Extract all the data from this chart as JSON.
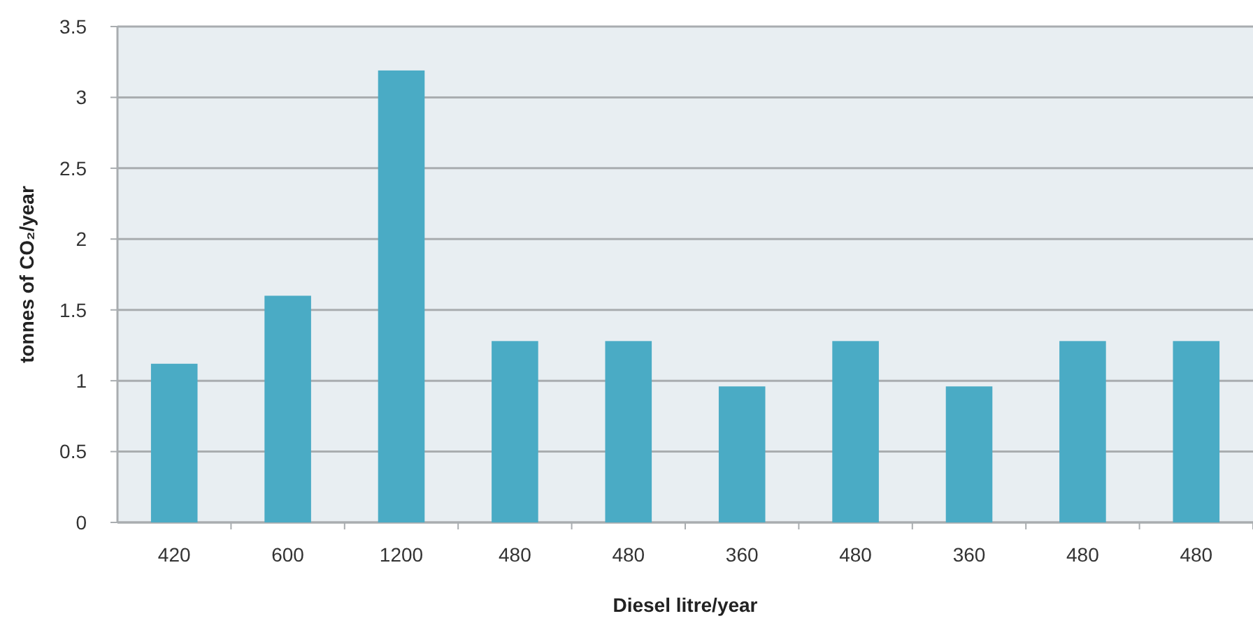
{
  "chart_data": {
    "type": "bar",
    "xlabel": "Diesel litre/year",
    "ylabel": "tonnes of CO₂/year",
    "categories": [
      "420",
      "600",
      "1200",
      "480",
      "480",
      "360",
      "480",
      "360",
      "480",
      "480"
    ],
    "values": [
      1.12,
      1.6,
      3.19,
      1.28,
      1.28,
      0.96,
      1.28,
      0.96,
      1.28,
      1.28
    ],
    "color": "#4aabc5",
    "ylim": [
      0,
      3.5
    ],
    "yticks": [
      0,
      0.5,
      1,
      1.5,
      2,
      2.5,
      3,
      3.5
    ],
    "grid": "y"
  }
}
